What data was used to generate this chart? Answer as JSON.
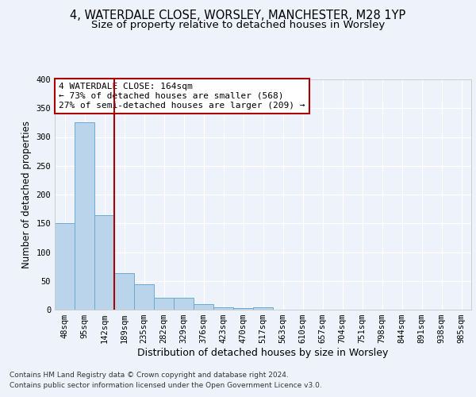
{
  "title_line1": "4, WATERDALE CLOSE, WORSLEY, MANCHESTER, M28 1YP",
  "title_line2": "Size of property relative to detached houses in Worsley",
  "xlabel": "Distribution of detached houses by size in Worsley",
  "ylabel": "Number of detached properties",
  "footer_line1": "Contains HM Land Registry data © Crown copyright and database right 2024.",
  "footer_line2": "Contains public sector information licensed under the Open Government Licence v3.0.",
  "bin_labels": [
    "48sqm",
    "95sqm",
    "142sqm",
    "189sqm",
    "235sqm",
    "282sqm",
    "329sqm",
    "376sqm",
    "423sqm",
    "470sqm",
    "517sqm",
    "563sqm",
    "610sqm",
    "657sqm",
    "704sqm",
    "751sqm",
    "798sqm",
    "844sqm",
    "891sqm",
    "938sqm",
    "985sqm"
  ],
  "bar_values": [
    151,
    325,
    164,
    63,
    44,
    21,
    21,
    9,
    4,
    3,
    4,
    0,
    0,
    0,
    0,
    0,
    0,
    0,
    0,
    0,
    0
  ],
  "bar_color": "#bad4ec",
  "bar_edgecolor": "#6aabd2",
  "vline_color": "#aa0000",
  "annotation_text_line1": "4 WATERDALE CLOSE: 164sqm",
  "annotation_text_line2": "← 73% of detached houses are smaller (568)",
  "annotation_text_line3": "27% of semi-detached houses are larger (209) →",
  "annotation_box_facecolor": "white",
  "annotation_box_edgecolor": "#aa0000",
  "ylim": [
    0,
    400
  ],
  "yticks": [
    0,
    50,
    100,
    150,
    200,
    250,
    300,
    350,
    400
  ],
  "background_color": "#eef2fb",
  "plot_background_color": "#eef2fb",
  "grid_color": "white",
  "title_fontsize": 10.5,
  "subtitle_fontsize": 9.5,
  "annotation_fontsize": 8,
  "axis_label_fontsize": 9,
  "ylabel_fontsize": 8.5,
  "tick_fontsize": 7.5,
  "footer_fontsize": 6.5
}
